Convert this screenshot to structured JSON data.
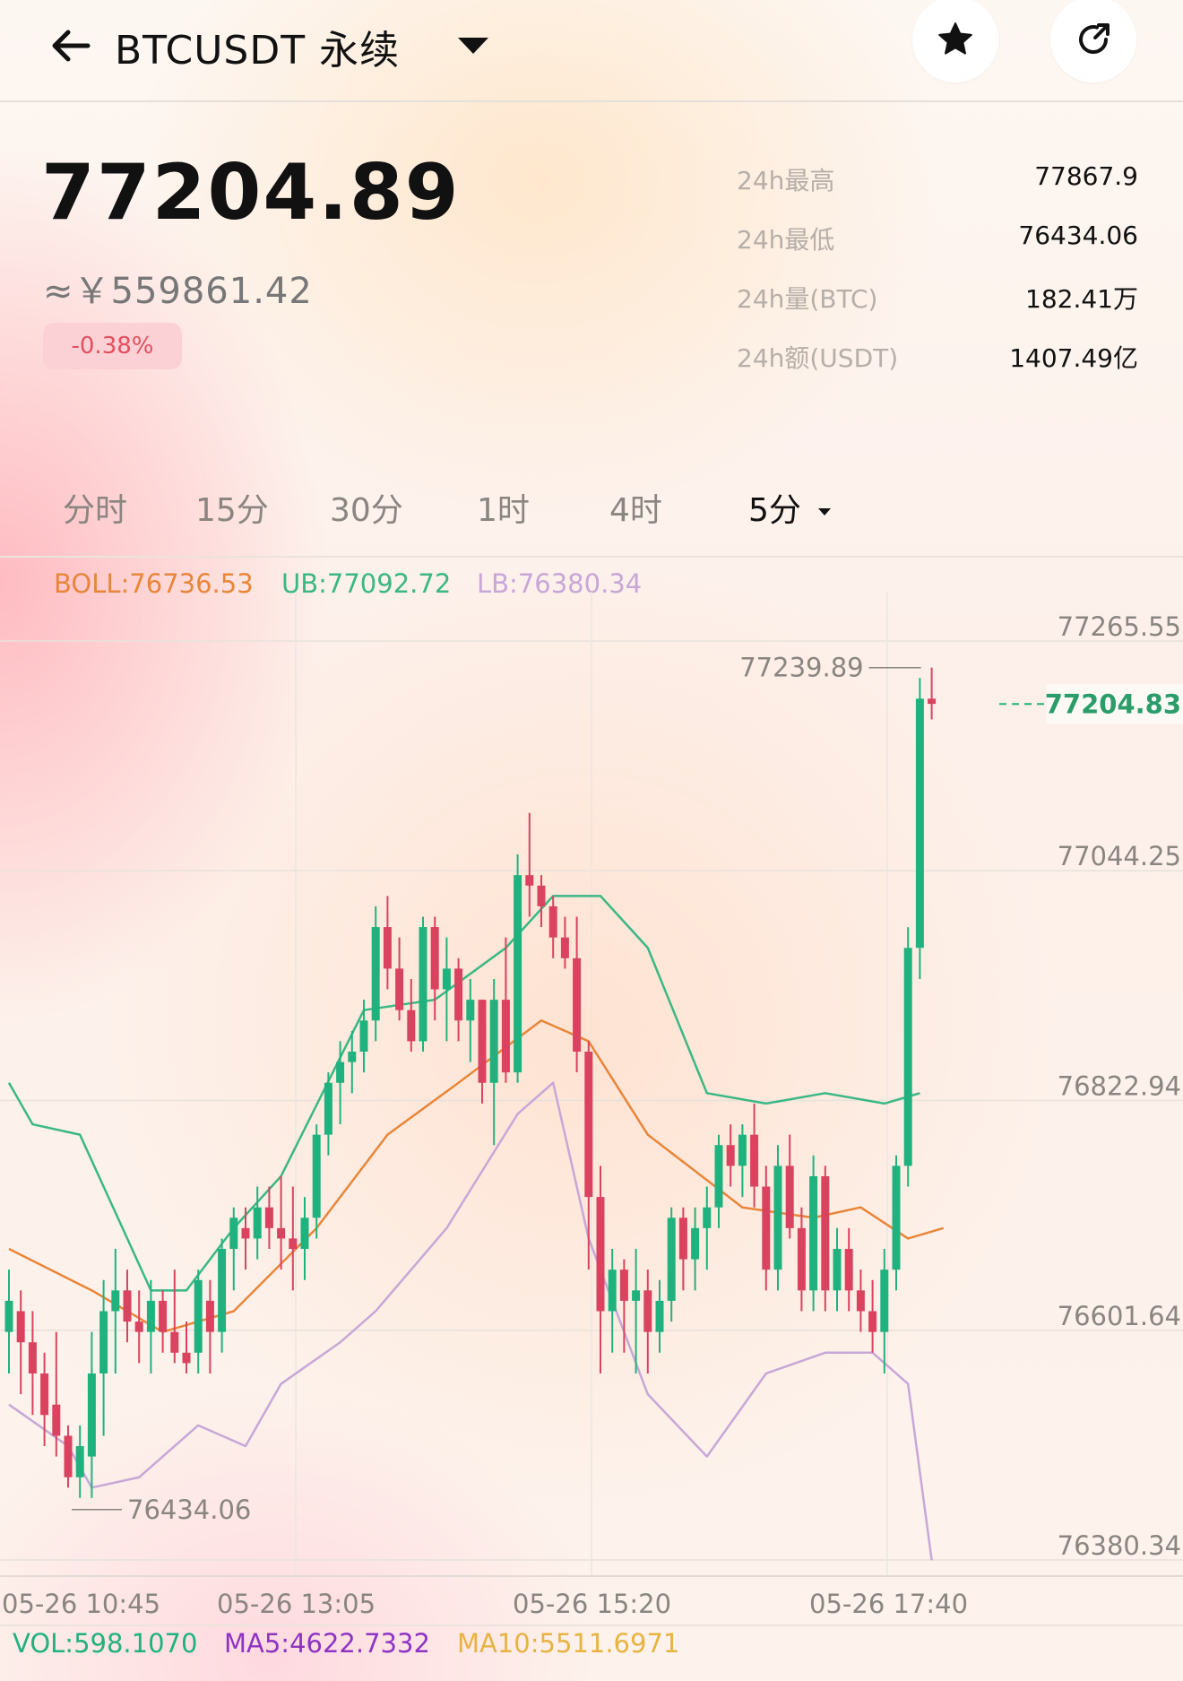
{
  "header": {
    "back_icon": "arrow-left-icon",
    "title": "BTCUSDT 永续",
    "favorite_icon": "star-icon",
    "share_icon": "share-arrow-icon"
  },
  "ticker": {
    "price": "77204.89",
    "cny_price": "≈￥559861.42",
    "change": "-0.38%"
  },
  "stats": [
    {
      "label": "24h最高",
      "value": "77867.9"
    },
    {
      "label": "24h最低",
      "value": "76434.06"
    },
    {
      "label": "24h量(BTC)",
      "value": "182.41万"
    },
    {
      "label": "24h额(USDT)",
      "value": "1407.49亿"
    }
  ],
  "tabs": [
    "分时",
    "15分",
    "30分",
    "1时",
    "4时",
    "5分"
  ],
  "indicators": {
    "boll": "BOLL:76736.53",
    "ub": "UB:77092.72",
    "lb": "LB:76380.34"
  },
  "volume": {
    "vol": "VOL:598.1070",
    "ma5": "MA5:4622.7332",
    "ma10": "MA10:5511.6971"
  },
  "colors": {
    "up": "#20b27e",
    "down": "#d9435f",
    "boll": "#e8863a",
    "ub": "#3ab884",
    "lb": "#c7a7d8"
  },
  "chart_data": {
    "type": "candlestick",
    "y_ticks": [
      "77265.55",
      "77044.25",
      "76822.94",
      "76601.64",
      "76380.34"
    ],
    "ylim": [
      76380.34,
      77265.55
    ],
    "x_ticks": [
      "05-26 10:45",
      "05-26 13:05",
      "05-26 15:20",
      "05-26 17:40"
    ],
    "high_marker": "77239.89",
    "low_marker": "76434.06",
    "last_price": "77204.83",
    "candles": [
      [
        76600,
        76660,
        76560,
        76630
      ],
      [
        76620,
        76640,
        76540,
        76590
      ],
      [
        76590,
        76620,
        76520,
        76560
      ],
      [
        76560,
        76580,
        76490,
        76520
      ],
      [
        76530,
        76600,
        76480,
        76500
      ],
      [
        76500,
        76510,
        76450,
        76460
      ],
      [
        76460,
        76510,
        76440,
        76490
      ],
      [
        76480,
        76600,
        76440,
        76560
      ],
      [
        76560,
        76650,
        76500,
        76620
      ],
      [
        76620,
        76680,
        76560,
        76640
      ],
      [
        76640,
        76660,
        76590,
        76610
      ],
      [
        76610,
        76640,
        76570,
        76600
      ],
      [
        76600,
        76650,
        76560,
        76630
      ],
      [
        76630,
        76640,
        76580,
        76600
      ],
      [
        76600,
        76660,
        76570,
        76580
      ],
      [
        76580,
        76610,
        76560,
        76570
      ],
      [
        76580,
        76660,
        76560,
        76650
      ],
      [
        76630,
        76650,
        76560,
        76600
      ],
      [
        76600,
        76690,
        76580,
        76680
      ],
      [
        76680,
        76720,
        76640,
        76710
      ],
      [
        76700,
        76720,
        76660,
        76690
      ],
      [
        76690,
        76740,
        76670,
        76720
      ],
      [
        76720,
        76740,
        76680,
        76700
      ],
      [
        76700,
        76750,
        76660,
        76690
      ],
      [
        76690,
        76740,
        76640,
        76680
      ],
      [
        76680,
        76730,
        76650,
        76710
      ],
      [
        76710,
        76800,
        76690,
        76790
      ],
      [
        76790,
        76850,
        76770,
        76840
      ],
      [
        76840,
        76880,
        76800,
        76860
      ],
      [
        76860,
        76890,
        76830,
        76870
      ],
      [
        76870,
        76920,
        76850,
        76900
      ],
      [
        76900,
        77010,
        76880,
        76990
      ],
      [
        76990,
        77020,
        76930,
        76950
      ],
      [
        76950,
        76980,
        76900,
        76910
      ],
      [
        76910,
        76940,
        76870,
        76880
      ],
      [
        76880,
        77000,
        76870,
        76990
      ],
      [
        76990,
        77000,
        76900,
        76930
      ],
      [
        76930,
        76980,
        76880,
        76950
      ],
      [
        76950,
        76960,
        76880,
        76900
      ],
      [
        76900,
        76940,
        76860,
        76920
      ],
      [
        76920,
        76920,
        76820,
        76840
      ],
      [
        76840,
        76940,
        76780,
        76920
      ],
      [
        76920,
        76980,
        76840,
        76850
      ],
      [
        76850,
        77060,
        76840,
        77040
      ],
      [
        77040,
        77100,
        77000,
        77030
      ],
      [
        77030,
        77040,
        76990,
        77010
      ],
      [
        77010,
        77020,
        76960,
        76980
      ],
      [
        76980,
        77000,
        76950,
        76960
      ],
      [
        76960,
        77000,
        76850,
        76870
      ],
      [
        76870,
        76880,
        76660,
        76730
      ],
      [
        76730,
        76760,
        76560,
        76620
      ],
      [
        76620,
        76680,
        76580,
        76660
      ],
      [
        76660,
        76670,
        76580,
        76630
      ],
      [
        76630,
        76680,
        76560,
        76640
      ],
      [
        76640,
        76660,
        76560,
        76600
      ],
      [
        76600,
        76650,
        76580,
        76630
      ],
      [
        76630,
        76720,
        76610,
        76710
      ],
      [
        76710,
        76720,
        76640,
        76670
      ],
      [
        76670,
        76720,
        76640,
        76700
      ],
      [
        76700,
        76740,
        76660,
        76720
      ],
      [
        76720,
        76790,
        76700,
        76780
      ],
      [
        76780,
        76800,
        76740,
        76760
      ],
      [
        76760,
        76800,
        76730,
        76790
      ],
      [
        76790,
        76820,
        76720,
        76740
      ],
      [
        76740,
        76760,
        76640,
        76660
      ],
      [
        76660,
        76780,
        76640,
        76760
      ],
      [
        76760,
        76790,
        76690,
        76700
      ],
      [
        76700,
        76720,
        76620,
        76640
      ],
      [
        76640,
        76770,
        76620,
        76750
      ],
      [
        76750,
        76760,
        76620,
        76640
      ],
      [
        76640,
        76700,
        76620,
        76680
      ],
      [
        76680,
        76700,
        76620,
        76640
      ],
      [
        76640,
        76660,
        76600,
        76620
      ],
      [
        76620,
        76650,
        76580,
        76600
      ],
      [
        76600,
        76680,
        76560,
        76660
      ],
      [
        76660,
        76770,
        76640,
        76760
      ],
      [
        76760,
        76990,
        76740,
        76970
      ],
      [
        76970,
        77230,
        76940,
        77210
      ],
      [
        77210,
        77240,
        77190,
        77205
      ]
    ],
    "boll_mid": [
      [
        0,
        76680
      ],
      [
        7,
        76640
      ],
      [
        13,
        76600
      ],
      [
        19,
        76620
      ],
      [
        26,
        76700
      ],
      [
        32,
        76790
      ],
      [
        38,
        76840
      ],
      [
        45,
        76900
      ],
      [
        49,
        76880
      ],
      [
        54,
        76790
      ],
      [
        62,
        76720
      ],
      [
        68,
        76710
      ],
      [
        72,
        76720
      ],
      [
        76,
        76690
      ],
      [
        79,
        76700
      ]
    ],
    "boll_upper": [
      [
        0,
        76840
      ],
      [
        2,
        76800
      ],
      [
        6,
        76790
      ],
      [
        12,
        76640
      ],
      [
        15,
        76640
      ],
      [
        19,
        76700
      ],
      [
        23,
        76750
      ],
      [
        30,
        76910
      ],
      [
        36,
        76920
      ],
      [
        42,
        76970
      ],
      [
        46,
        77020
      ],
      [
        50,
        77020
      ],
      [
        54,
        76970
      ],
      [
        59,
        76830
      ],
      [
        64,
        76820
      ],
      [
        69,
        76830
      ],
      [
        74,
        76820
      ],
      [
        77,
        76830
      ]
    ],
    "boll_lower": [
      [
        0,
        76530
      ],
      [
        5,
        76490
      ],
      [
        7,
        76450
      ],
      [
        11,
        76460
      ],
      [
        16,
        76510
      ],
      [
        20,
        76490
      ],
      [
        23,
        76550
      ],
      [
        28,
        76590
      ],
      [
        31,
        76620
      ],
      [
        37,
        76700
      ],
      [
        43,
        76810
      ],
      [
        46,
        76840
      ],
      [
        49,
        76690
      ],
      [
        54,
        76540
      ],
      [
        59,
        76480
      ],
      [
        64,
        76560
      ],
      [
        69,
        76580
      ],
      [
        73,
        76580
      ],
      [
        76,
        76550
      ],
      [
        78,
        76380
      ]
    ]
  }
}
